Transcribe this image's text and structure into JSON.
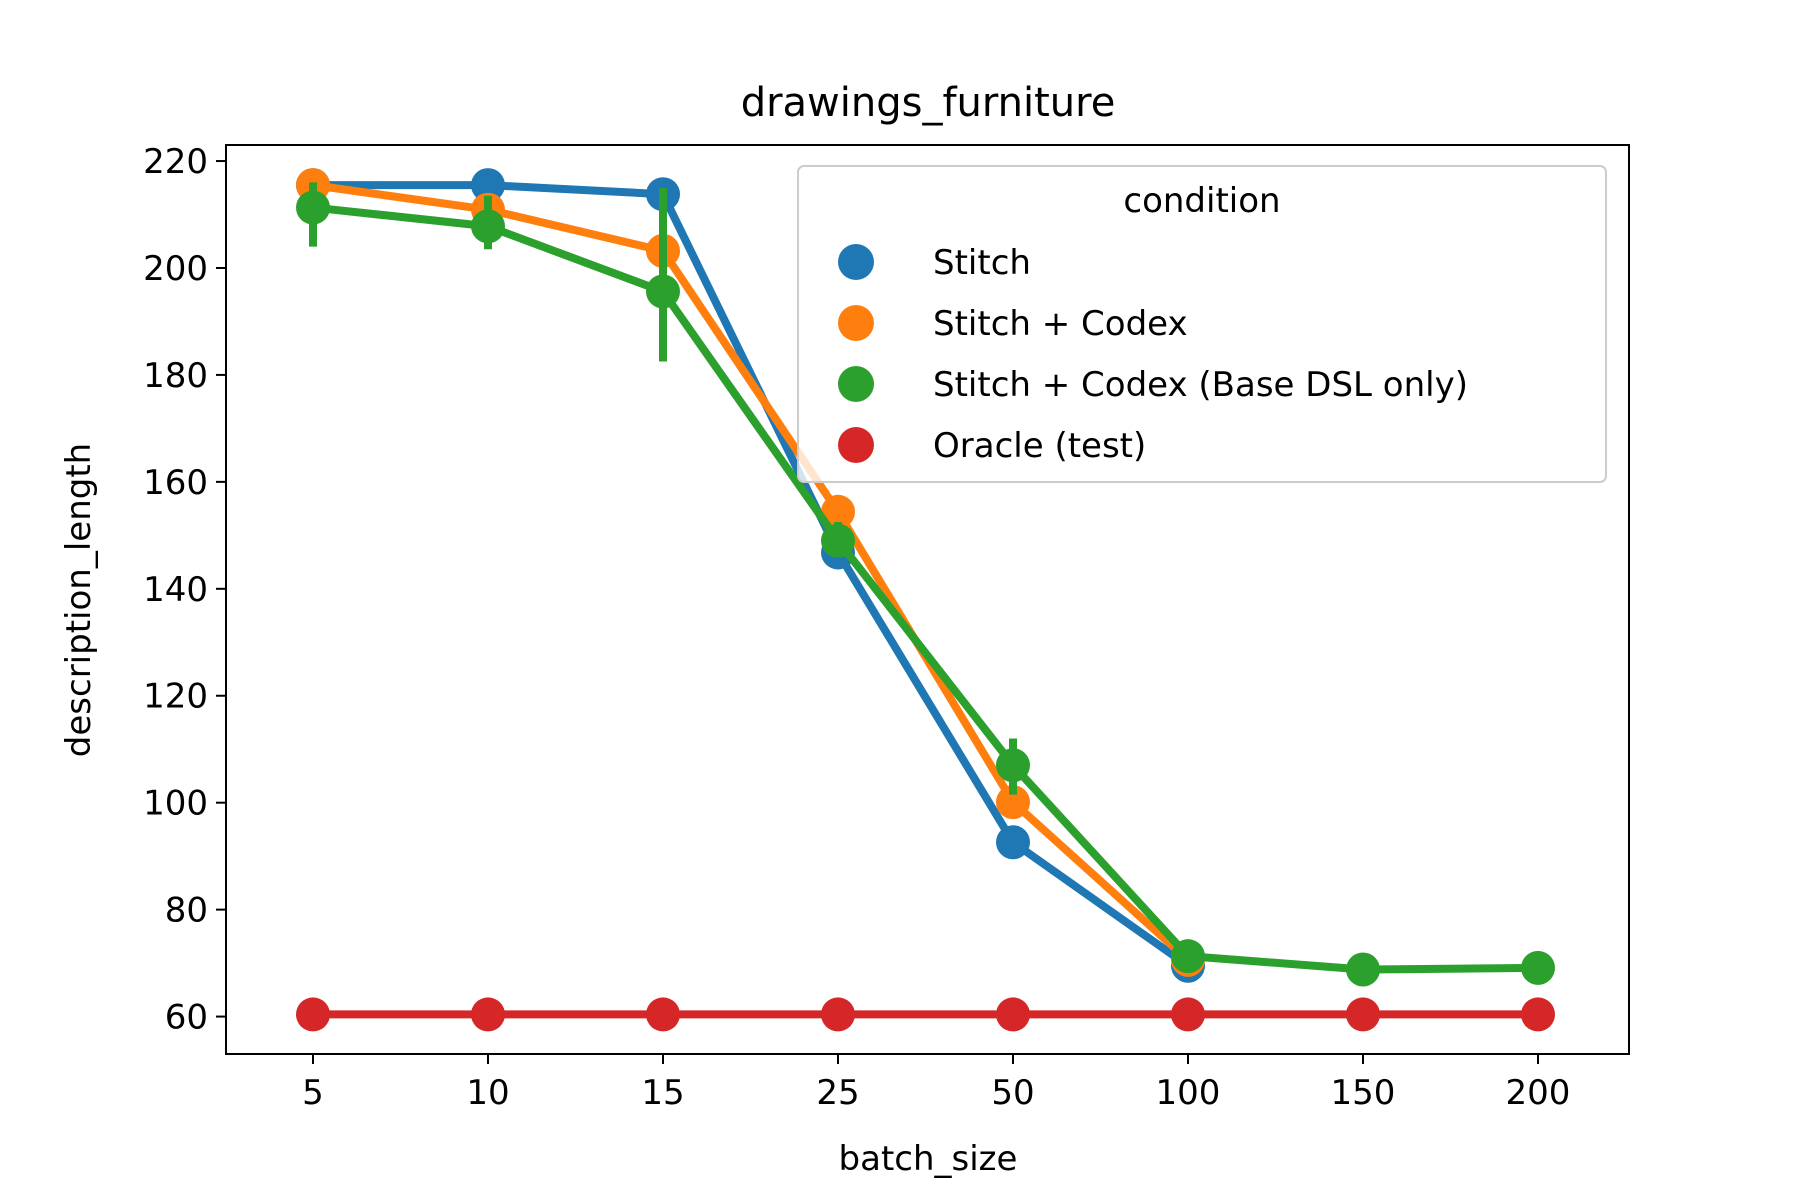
{
  "chart_data": {
    "type": "line",
    "title": "drawings_furniture",
    "xlabel": "batch_size",
    "ylabel": "description_length",
    "categories": [
      "5",
      "10",
      "15",
      "25",
      "50",
      "100",
      "150",
      "200"
    ],
    "ylim": [
      53,
      223
    ],
    "yticks": [
      60,
      80,
      100,
      120,
      140,
      160,
      180,
      200,
      220
    ],
    "grid": false,
    "legend": {
      "title": "condition",
      "placement": "top-right"
    },
    "series": [
      {
        "name": "Stitch",
        "color": "#1f77b4",
        "values": [
          215.5,
          215.5,
          213.8,
          146.8,
          92.6,
          69.5,
          null,
          null
        ],
        "error": [
          null,
          null,
          null,
          null,
          null,
          null,
          null,
          null
        ]
      },
      {
        "name": "Stitch + Codex",
        "color": "#ff7f0e",
        "values": [
          215.5,
          210.9,
          203.2,
          154.4,
          100.1,
          70.6,
          null,
          null
        ],
        "error": [
          null,
          null,
          null,
          null,
          null,
          [
            69.6,
            71.6
          ],
          null,
          null
        ]
      },
      {
        "name": "Stitch + Codex (Base DSL only)",
        "color": "#2ca02c",
        "values": [
          211.3,
          207.8,
          195.6,
          149.0,
          107.0,
          71.3,
          68.8,
          69.1
        ],
        "error": [
          [
            204.0,
            216.0
          ],
          [
            203.5,
            213.5
          ],
          [
            182.5,
            215.0
          ],
          [
            146.0,
            152.5
          ],
          [
            101.5,
            112.0
          ],
          [
            70.0,
            72.5
          ],
          null,
          null
        ]
      },
      {
        "name": "Oracle (test)",
        "color": "#d62728",
        "values": [
          60.4,
          60.4,
          60.4,
          60.4,
          60.4,
          60.4,
          60.4,
          60.4
        ],
        "error": [
          null,
          null,
          null,
          null,
          null,
          null,
          null,
          null
        ]
      }
    ]
  }
}
